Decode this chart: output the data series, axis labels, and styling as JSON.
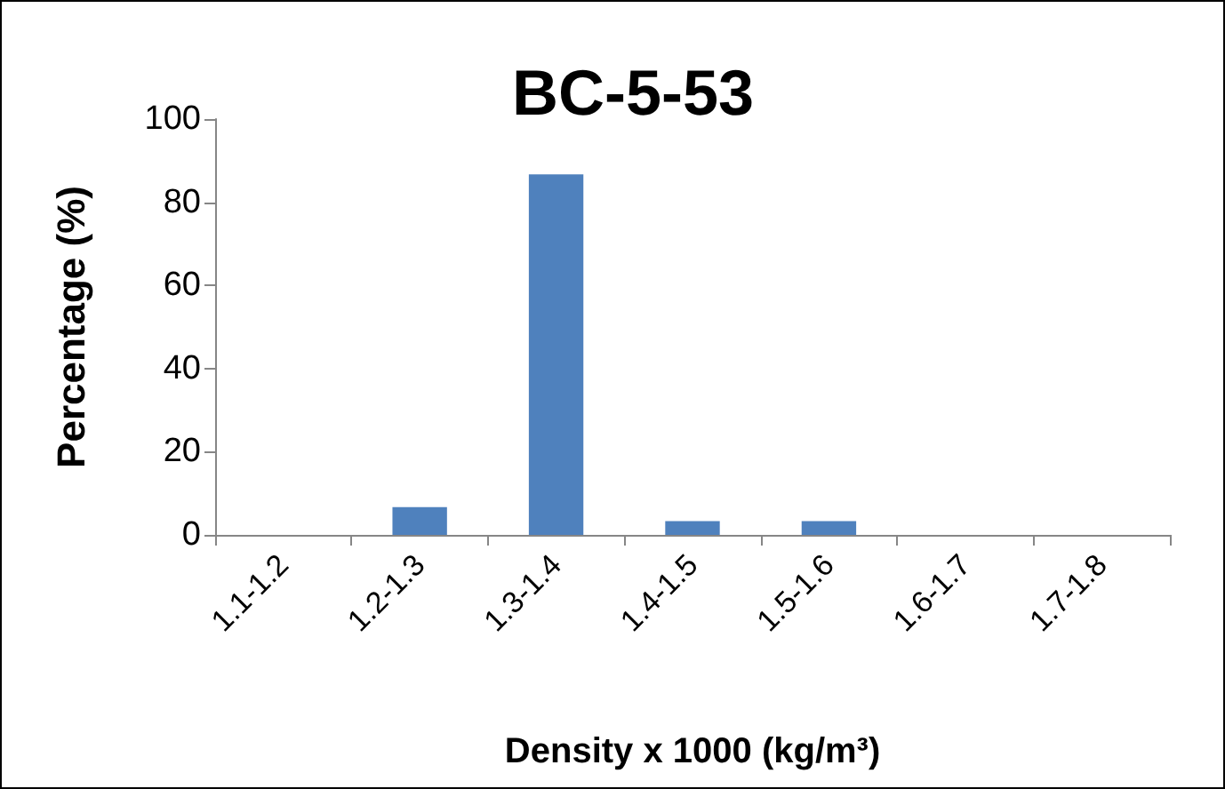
{
  "chart_data": {
    "type": "bar",
    "title": "BC-5-53",
    "xlabel": "Density x 1000 (kg/m³)",
    "ylabel": "Percentage (%)",
    "categories": [
      "1.1-1.2",
      "1.2-1.3",
      "1.3-1.4",
      "1.4-1.5",
      "1.5-1.6",
      "1.6-1.7",
      "1.7-1.8"
    ],
    "values": [
      0,
      6.7,
      86.7,
      3.3,
      3.3,
      0,
      0
    ],
    "color": "#4f81bd",
    "ylim": [
      0,
      100
    ],
    "yticks": [
      0,
      20,
      40,
      60,
      80,
      100
    ],
    "grid": false
  }
}
